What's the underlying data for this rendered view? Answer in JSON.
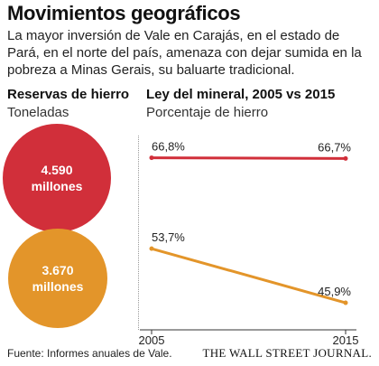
{
  "header": {
    "title": "Movimientos geográficos",
    "subtitle": "La mayor inversión de Vale en Carajás, en el estado de Pará, en el norte del país, amenaza con dejar sumida en la pobreza a Minas Gerais, su baluarte tradicional."
  },
  "reserves": {
    "title": "Reservas de hierro",
    "subtitle": "Toneladas",
    "items": [
      {
        "value": "4.590",
        "unit": "millones",
        "amount": 4590,
        "color": "#d12f3a"
      },
      {
        "value": "3.670",
        "unit": "millones",
        "amount": 3670,
        "color": "#e3952a"
      }
    ]
  },
  "ore_chart": {
    "title": "Ley del mineral, 2005 vs 2015",
    "subtitle": "Porcentaje de hierro"
  },
  "chart_data": {
    "type": "line",
    "title": "Ley del mineral, 2005 vs 2015",
    "ylabel": "Porcentaje de hierro",
    "x": [
      2005,
      2015
    ],
    "ylim": [
      42,
      70
    ],
    "grid": false,
    "series": [
      {
        "values": [
          66.8,
          66.7
        ],
        "labels": [
          "66,8%",
          "66,7%"
        ],
        "color": "#d12f3a"
      },
      {
        "values": [
          53.7,
          45.9
        ],
        "labels": [
          "53,7%",
          "45,9%"
        ],
        "color": "#e3952a"
      }
    ],
    "tick_labels": [
      "2005",
      "2015"
    ]
  },
  "footer": {
    "source": "Fuente: Informes anuales de Vale.",
    "brand": "THE WALL STREET JOURNAL."
  }
}
